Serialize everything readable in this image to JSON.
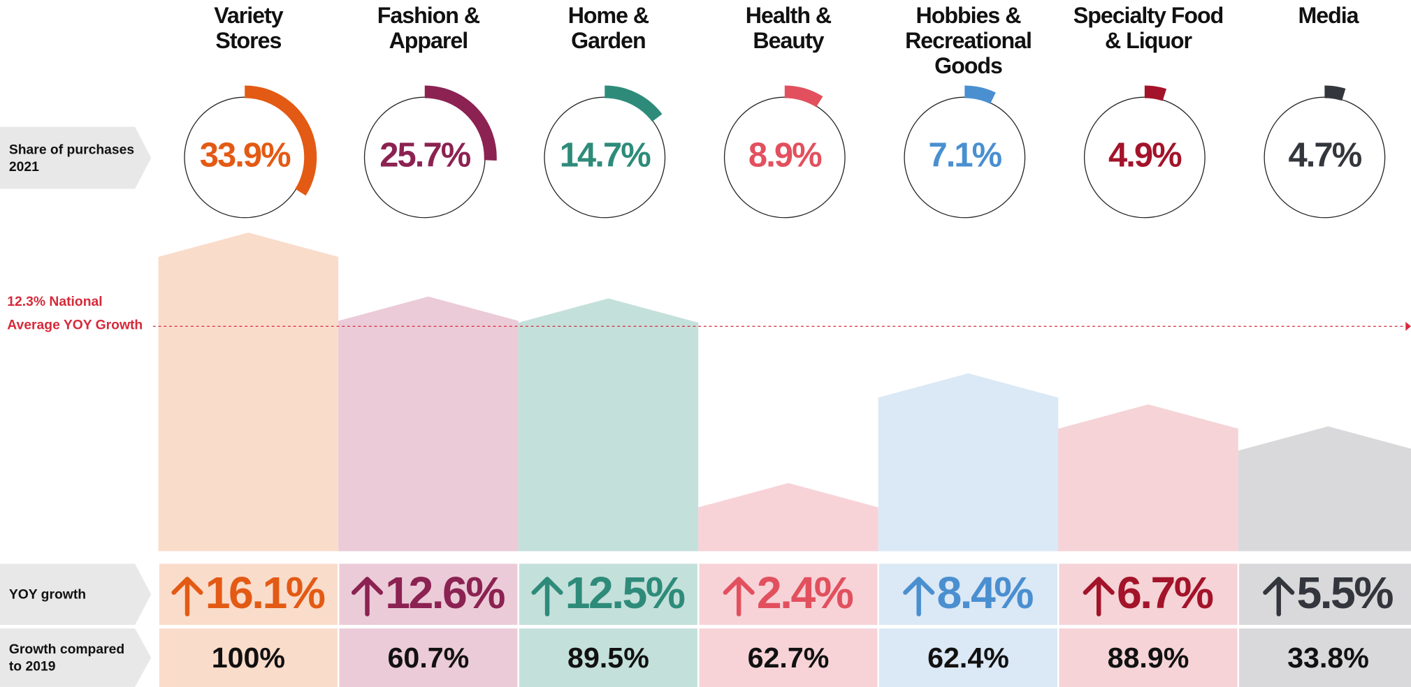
{
  "chart_data": {
    "type": "infographic",
    "categories": [
      [
        "Variety",
        "Stores"
      ],
      [
        "Fashion &",
        "Apparel"
      ],
      [
        "Home &",
        "Garden"
      ],
      [
        "Health &",
        "Beauty"
      ],
      [
        "Hobbies &",
        "Recreational",
        "Goods"
      ],
      [
        "Specialty Food",
        "& Liquor"
      ],
      [
        "Media"
      ]
    ],
    "colors": [
      "#e35a14",
      "#8b2252",
      "#2e8b7a",
      "#e2505e",
      "#4a8fd0",
      "#a3132a",
      "#34363d"
    ],
    "fills": [
      "#fadccb",
      "#ebcbd7",
      "#c4e0da",
      "#f7d3d8",
      "#dbe8f5",
      "#f5d3d6",
      "#d9d9db"
    ],
    "ylim": [
      0,
      30
    ],
    "series": [
      {
        "name": "Share of purchases 2021",
        "values": [
          33.9,
          25.7,
          14.7,
          8.9,
          7.1,
          4.9,
          4.7
        ],
        "value_labels": [
          "33.9%",
          "25.7%",
          "14.7%",
          "8.9%",
          "7.1%",
          "4.9%",
          "4.7%"
        ]
      },
      {
        "name": "YOY growth",
        "values": [
          16.1,
          12.6,
          12.5,
          2.4,
          8.4,
          6.7,
          5.5
        ],
        "value_labels": [
          "16.1%",
          "12.6%",
          "12.5%",
          "2.4%",
          "8.4%",
          "6.7%",
          "5.5%"
        ]
      },
      {
        "name": "Growth compared to 2019",
        "values": [
          100,
          60.7,
          89.5,
          62.7,
          62.4,
          88.9,
          33.8
        ],
        "value_labels": [
          "100%",
          "60.7%",
          "89.5%",
          "62.7%",
          "62.4%",
          "88.9%",
          "33.8%"
        ]
      }
    ],
    "reference_line": {
      "value": 12.3,
      "label": "12.3% National Average YOY Growth",
      "color": "#d62a3a"
    }
  }
}
